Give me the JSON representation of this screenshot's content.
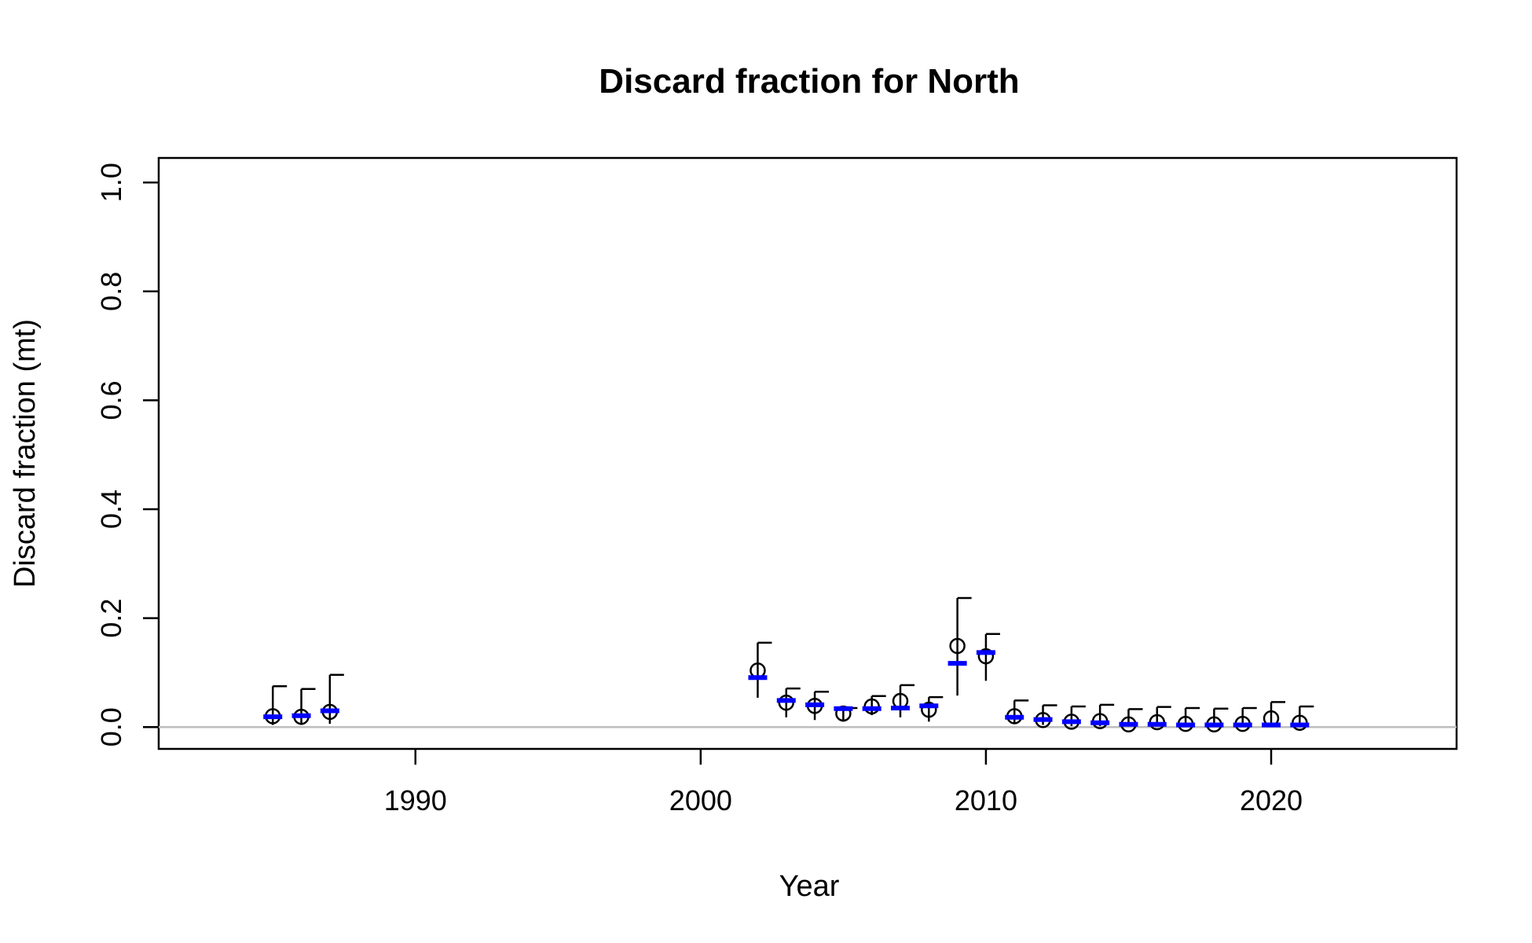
{
  "chart_data": {
    "type": "scatter",
    "title": "Discard fraction for North",
    "xlabel": "Year",
    "ylabel": "Discard fraction (mt)",
    "xlim": [
      1981,
      2026.5
    ],
    "ylim": [
      -0.04,
      1.045
    ],
    "x_ticks": [
      1990,
      2000,
      2010,
      2020
    ],
    "y_ticks": [
      0.0,
      0.2,
      0.4,
      0.6,
      0.8,
      1.0
    ],
    "x_tick_labels": [
      "1990",
      "2000",
      "2010",
      "2020"
    ],
    "y_tick_labels": [
      "0.0",
      "0.2",
      "0.4",
      "0.6",
      "0.8",
      "1.0"
    ],
    "reference_line_y": 0.0,
    "colors": {
      "observed": "#000000",
      "expected": "#0000ff",
      "reference": "#bebebe"
    },
    "series": [
      {
        "marker": "open-circle",
        "x": [
          1985,
          1986,
          1987,
          2002,
          2003,
          2004,
          2005,
          2006,
          2007,
          2008,
          2009,
          2010,
          2011,
          2012,
          2013,
          2014,
          2015,
          2016,
          2017,
          2018,
          2019,
          2020,
          2021
        ],
        "y": [
          0.02,
          0.019,
          0.028,
          0.104,
          0.045,
          0.039,
          0.025,
          0.038,
          0.048,
          0.032,
          0.149,
          0.13,
          0.02,
          0.013,
          0.01,
          0.011,
          0.005,
          0.009,
          0.006,
          0.005,
          0.006,
          0.016,
          0.008
        ],
        "lower": [
          0.004,
          0.004,
          0.006,
          0.054,
          0.018,
          0.013,
          0.01,
          0.022,
          0.018,
          0.01,
          0.058,
          0.085,
          0.008,
          0.004,
          0.002,
          0.002,
          0.001,
          0.001,
          0.001,
          0.001,
          0.001,
          0.002,
          0.001
        ],
        "upper": [
          0.075,
          0.07,
          0.096,
          0.155,
          0.071,
          0.065,
          0.035,
          0.057,
          0.077,
          0.055,
          0.237,
          0.171,
          0.049,
          0.04,
          0.038,
          0.041,
          0.033,
          0.037,
          0.035,
          0.034,
          0.035,
          0.046,
          0.038
        ]
      },
      {
        "marker": "horizontal-dash",
        "x": [
          1985,
          1986,
          1987,
          2002,
          2003,
          2004,
          2005,
          2006,
          2007,
          2008,
          2009,
          2010,
          2011,
          2012,
          2013,
          2014,
          2015,
          2016,
          2017,
          2018,
          2019,
          2020,
          2021
        ],
        "y": [
          0.019,
          0.021,
          0.03,
          0.091,
          0.049,
          0.041,
          0.034,
          0.034,
          0.035,
          0.039,
          0.117,
          0.137,
          0.018,
          0.014,
          0.01,
          0.008,
          0.005,
          0.005,
          0.004,
          0.004,
          0.004,
          0.004,
          0.004
        ]
      }
    ]
  }
}
